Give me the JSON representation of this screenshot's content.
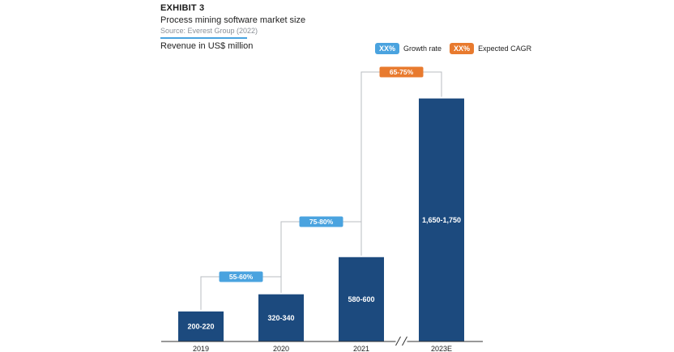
{
  "header": {
    "exhibit": "EXHIBIT 3",
    "subtitle": "Process mining software market size",
    "source": "Source: Everest Group (2022)"
  },
  "legend": {
    "growth": {
      "swatch": "XX%",
      "label": "Growth rate",
      "color": "#4aa3df"
    },
    "cagr": {
      "swatch": "XX%",
      "label": "Expected CAGR",
      "color": "#e87a2e"
    }
  },
  "chart_data": {
    "type": "bar",
    "title": "",
    "xlabel": "",
    "ylabel": "Revenue in US$ million",
    "categories": [
      "2019",
      "2020",
      "2021",
      "2023E"
    ],
    "values": [
      210,
      330,
      590,
      1700
    ],
    "value_labels": [
      "200-220",
      "320-340",
      "580-600",
      "1,650-1,750"
    ],
    "ylim": [
      0,
      1800
    ],
    "grid": false,
    "axis_break_between": [
      "2021",
      "2023E"
    ],
    "bar_color": "#1c4a7e",
    "growth_rates": [
      {
        "from": "2019",
        "to": "2020",
        "label": "55-60%",
        "kind": "growth"
      },
      {
        "from": "2020",
        "to": "2021",
        "label": "75-80%",
        "kind": "growth"
      },
      {
        "from": "2021",
        "to": "2023E",
        "label": "65-75%",
        "kind": "cagr"
      }
    ]
  }
}
